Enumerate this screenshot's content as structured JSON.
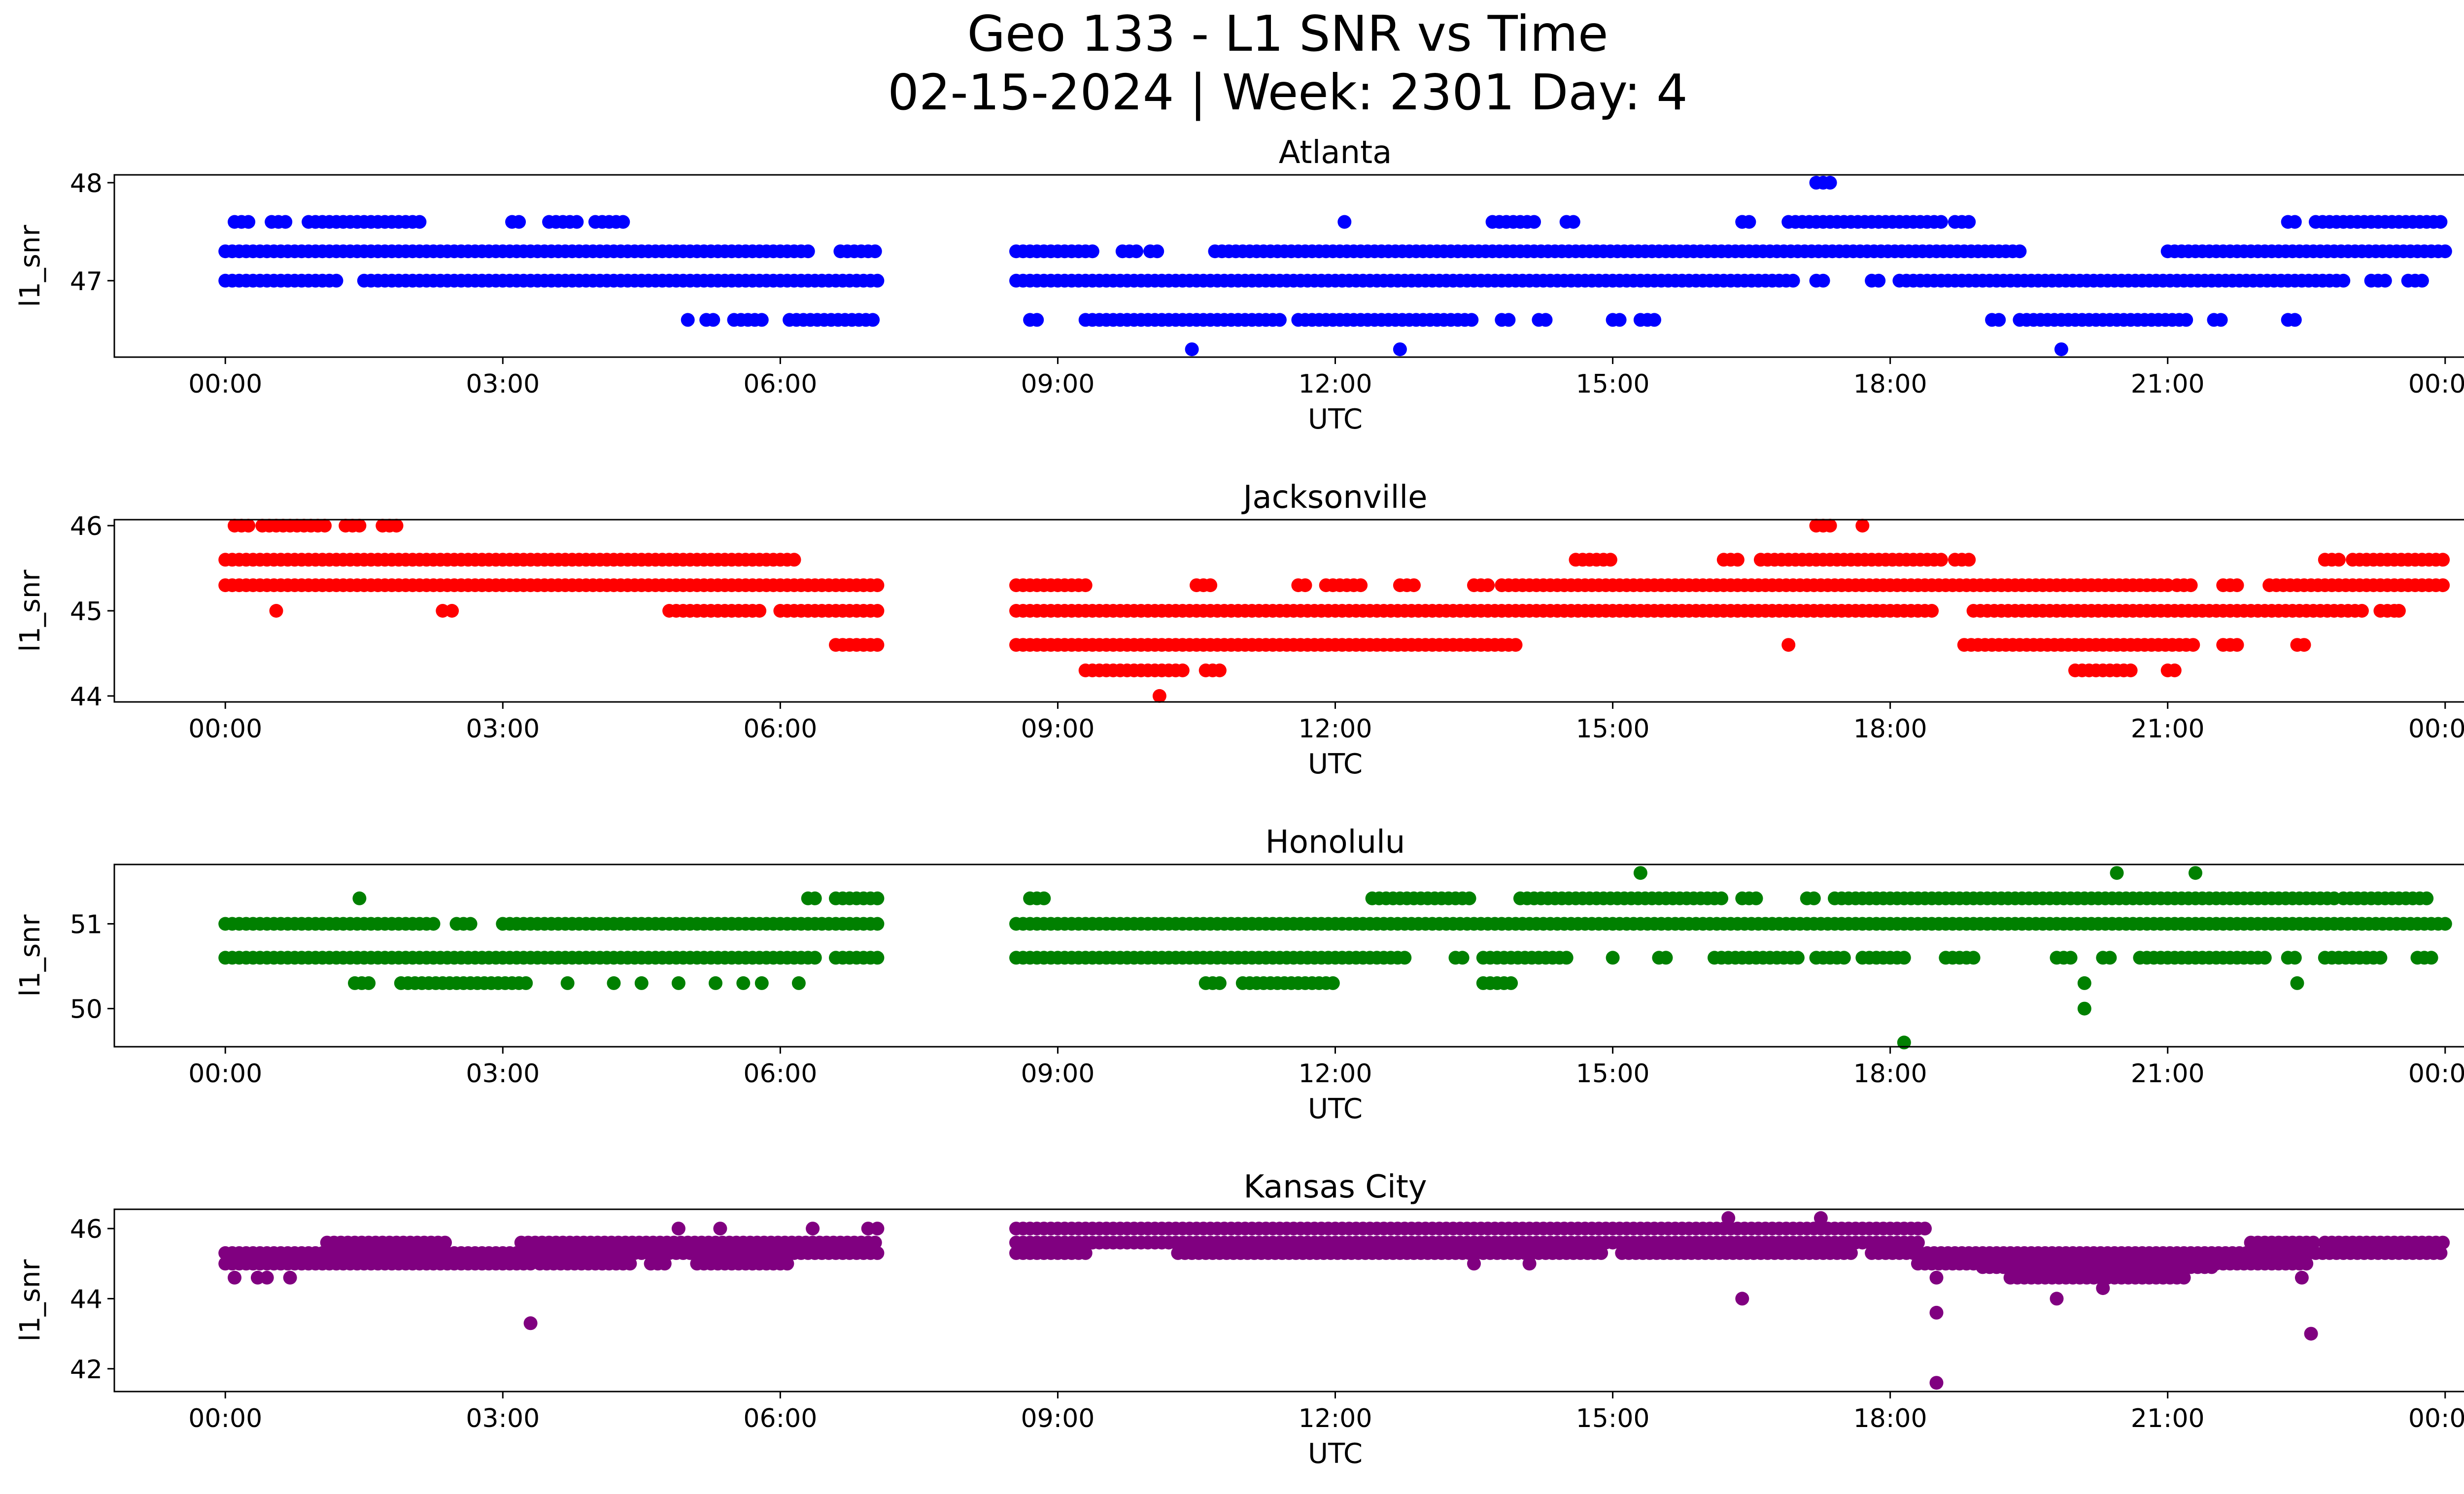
{
  "figure": {
    "title_line1": "Geo 133 - L1 SNR vs Time",
    "title_line2": "02-15-2024 | Week: 2301 Day: 4"
  },
  "chart_data": [
    {
      "type": "scatter",
      "title": "Atlanta",
      "xlabel": "UTC",
      "ylabel": "l1_snr",
      "color": "#0000ff",
      "xlim_hours": [
        -1.2,
        25.2
      ],
      "ylim": [
        46.22,
        48.08
      ],
      "yticks": [
        47,
        48
      ],
      "xtick_labels": [
        "00:00",
        "03:00",
        "06:00",
        "09:00",
        "12:00",
        "15:00",
        "18:00",
        "21:00",
        "00:00"
      ],
      "gap_hours": [
        7.1,
        8.55
      ],
      "bands": [
        {
          "y": 47.3,
          "segments": [
            [
              0,
              6.3
            ],
            [
              6.65,
              7.05
            ],
            [
              8.55,
              9.4
            ],
            [
              9.7,
              9.85
            ],
            [
              10.0,
              10.1
            ],
            [
              10.7,
              19.4
            ],
            [
              21.0,
              24.0
            ]
          ]
        },
        {
          "y": 47.0,
          "segments": [
            [
              0,
              1.2
            ],
            [
              1.5,
              7.05
            ],
            [
              8.55,
              17.0
            ],
            [
              17.2,
              17.3
            ],
            [
              17.8,
              17.9
            ],
            [
              18.1,
              22.9
            ],
            [
              23.2,
              23.4
            ],
            [
              23.6,
              23.8
            ]
          ]
        },
        {
          "y": 47.6,
          "segments": [
            [
              0.1,
              0.3
            ],
            [
              0.5,
              0.7
            ],
            [
              0.9,
              2.1
            ],
            [
              3.1,
              3.2
            ],
            [
              3.5,
              3.8
            ],
            [
              4.0,
              4.3
            ],
            [
              13.7,
              14.2
            ],
            [
              14.5,
              14.6
            ],
            [
              16.4,
              16.5
            ],
            [
              16.9,
              18.6
            ],
            [
              18.7,
              18.9
            ],
            [
              22.3,
              22.4
            ],
            [
              22.6,
              24.0
            ]
          ]
        },
        {
          "y": 46.6,
          "segments": [
            [
              5.0,
              5.05
            ],
            [
              5.2,
              5.3
            ],
            [
              5.5,
              5.8
            ],
            [
              6.1,
              7.0
            ],
            [
              8.7,
              8.8
            ],
            [
              9.3,
              11.4
            ],
            [
              11.6,
              13.5
            ],
            [
              13.8,
              13.9
            ],
            [
              14.2,
              14.3
            ],
            [
              15.0,
              15.1
            ],
            [
              15.3,
              15.5
            ],
            [
              19.1,
              19.2
            ],
            [
              19.4,
              21.2
            ],
            [
              21.5,
              21.6
            ],
            [
              22.3,
              22.4
            ]
          ]
        },
        {
          "y": 48.0,
          "segments": [
            [
              17.2,
              17.35
            ]
          ]
        }
      ],
      "points": [
        [
          10.45,
          46.3
        ],
        [
          12.7,
          46.3
        ],
        [
          19.85,
          46.3
        ],
        [
          12.1,
          47.6
        ],
        [
          16.4,
          47.6
        ]
      ]
    },
    {
      "type": "scatter",
      "title": "Jacksonville",
      "xlabel": "UTC",
      "ylabel": "l1_snr",
      "color": "#ff0000",
      "xlim_hours": [
        -1.2,
        25.2
      ],
      "ylim": [
        43.93,
        46.07
      ],
      "yticks": [
        44,
        45,
        46
      ],
      "xtick_labels": [
        "00:00",
        "03:00",
        "06:00",
        "09:00",
        "12:00",
        "15:00",
        "18:00",
        "21:00",
        "00:00"
      ],
      "gap_hours": [
        7.1,
        8.55
      ],
      "bands": [
        {
          "y": 45.6,
          "segments": [
            [
              0,
              6.2
            ],
            [
              14.6,
              15.0
            ],
            [
              16.2,
              16.4
            ],
            [
              16.6,
              18.6
            ],
            [
              18.7,
              18.9
            ],
            [
              22.7,
              22.9
            ],
            [
              23.0,
              24.0
            ]
          ]
        },
        {
          "y": 45.3,
          "segments": [
            [
              0,
              7.05
            ],
            [
              8.55,
              9.3
            ],
            [
              10.5,
              10.7
            ],
            [
              11.6,
              11.7
            ],
            [
              11.9,
              12.3
            ],
            [
              12.7,
              12.9
            ],
            [
              13.5,
              13.7
            ],
            [
              13.8,
              21.0
            ],
            [
              21.1,
              21.3
            ],
            [
              21.6,
              21.8
            ],
            [
              22.1,
              24.0
            ]
          ]
        },
        {
          "y": 45.0,
          "segments": [
            [
              4.8,
              5.8
            ],
            [
              6.0,
              7.05
            ],
            [
              8.55,
              18.5
            ],
            [
              18.9,
              23.1
            ],
            [
              23.3,
              23.5
            ]
          ]
        },
        {
          "y": 44.6,
          "segments": [
            [
              8.55,
              14.0
            ],
            [
              18.8,
              21.3
            ],
            [
              21.6,
              21.8
            ],
            [
              22.4,
              22.5
            ]
          ]
        },
        {
          "y": 44.6,
          "segments": [
            [
              6.6,
              7.05
            ]
          ]
        },
        {
          "y": 44.3,
          "segments": [
            [
              9.3,
              10.4
            ],
            [
              10.6,
              10.8
            ],
            [
              20.0,
              20.6
            ],
            [
              21.0,
              21.1
            ]
          ]
        },
        {
          "y": 46.0,
          "segments": [
            [
              0.1,
              0.3
            ],
            [
              0.4,
              1.1
            ],
            [
              1.3,
              1.5
            ],
            [
              1.7,
              1.9
            ],
            [
              17.2,
              17.35
            ],
            [
              17.7,
              17.75
            ]
          ]
        }
      ],
      "points": [
        [
          0.55,
          45.0
        ],
        [
          2.35,
          45.0
        ],
        [
          2.45,
          45.0
        ],
        [
          10.1,
          44.0
        ],
        [
          16.9,
          44.6
        ],
        [
          23.5,
          45.0
        ]
      ]
    },
    {
      "type": "scatter",
      "title": "Honolulu",
      "xlabel": "UTC",
      "ylabel": "l1_snr",
      "color": "#008000",
      "xlim_hours": [
        -1.2,
        25.2
      ],
      "ylim": [
        49.55,
        51.7
      ],
      "yticks": [
        50,
        51
      ],
      "xtick_labels": [
        "00:00",
        "03:00",
        "06:00",
        "09:00",
        "12:00",
        "15:00",
        "18:00",
        "21:00",
        "00:00"
      ],
      "gap_hours": [
        7.1,
        8.55
      ],
      "bands": [
        {
          "y": 51.0,
          "segments": [
            [
              0,
              2.3
            ],
            [
              2.5,
              2.7
            ],
            [
              3.0,
              7.05
            ],
            [
              8.55,
              24.0
            ]
          ]
        },
        {
          "y": 50.6,
          "segments": [
            [
              0,
              6.4
            ],
            [
              6.6,
              7.05
            ],
            [
              8.55,
              12.8
            ],
            [
              13.3,
              13.4
            ],
            [
              13.6,
              14.5
            ],
            [
              15.5,
              15.6
            ],
            [
              16.1,
              17.0
            ],
            [
              17.2,
              17.5
            ],
            [
              17.7,
              18.2
            ],
            [
              18.6,
              18.9
            ],
            [
              19.8,
              20.0
            ],
            [
              20.3,
              20.4
            ],
            [
              20.7,
              22.1
            ],
            [
              22.3,
              22.4
            ],
            [
              22.7,
              23.3
            ],
            [
              23.7,
              23.9
            ]
          ]
        },
        {
          "y": 51.3,
          "segments": [
            [
              12.4,
              13.5
            ],
            [
              14.0,
              16.2
            ],
            [
              16.4,
              16.6
            ],
            [
              17.1,
              17.2
            ],
            [
              17.4,
              22.8
            ],
            [
              22.9,
              23.8
            ]
          ]
        },
        {
          "y": 51.3,
          "segments": [
            [
              6.3,
              6.4
            ],
            [
              6.6,
              7.05
            ],
            [
              8.7,
              8.9
            ]
          ]
        },
        {
          "y": 50.3,
          "segments": [
            [
              1.4,
              1.6
            ],
            [
              1.9,
              3.3
            ],
            [
              10.6,
              10.8
            ],
            [
              11.0,
              12.0
            ],
            [
              13.6,
              13.9
            ]
          ]
        }
      ],
      "points": [
        [
          1.45,
          51.3
        ],
        [
          3.7,
          50.3
        ],
        [
          4.2,
          50.3
        ],
        [
          4.5,
          50.3
        ],
        [
          4.9,
          50.3
        ],
        [
          5.3,
          50.3
        ],
        [
          5.6,
          50.3
        ],
        [
          5.8,
          50.3
        ],
        [
          6.2,
          50.3
        ],
        [
          15.3,
          51.6
        ],
        [
          20.45,
          51.6
        ],
        [
          21.3,
          51.6
        ],
        [
          20.1,
          50.3
        ],
        [
          20.1,
          50.0
        ],
        [
          22.4,
          50.3
        ],
        [
          18.15,
          49.6
        ],
        [
          15.0,
          50.6
        ]
      ]
    },
    {
      "type": "scatter",
      "title": "Kansas City",
      "xlabel": "UTC",
      "ylabel": "l1_snr",
      "color": "#800080",
      "xlim_hours": [
        -1.2,
        25.2
      ],
      "ylim": [
        41.35,
        46.55
      ],
      "yticks": [
        42,
        44,
        46
      ],
      "xtick_labels": [
        "00:00",
        "03:00",
        "06:00",
        "09:00",
        "12:00",
        "15:00",
        "18:00",
        "21:00",
        "00:00"
      ],
      "gap_hours": [
        7.1,
        8.55
      ],
      "bands": [
        {
          "y": 45.0,
          "segments": [
            [
              0,
              3.3
            ],
            [
              3.4,
              4.4
            ],
            [
              4.6,
              4.8
            ],
            [
              5.1,
              6.1
            ],
            [
              18.3,
              22.5
            ]
          ]
        },
        {
          "y": 45.3,
          "segments": [
            [
              0,
              7.05
            ],
            [
              8.55,
              9.3
            ],
            [
              10.3,
              14.9
            ],
            [
              15.1,
              17.6
            ],
            [
              17.8,
              24.0
            ]
          ]
        },
        {
          "y": 45.6,
          "segments": [
            [
              1.1,
              2.4
            ],
            [
              3.2,
              7.05
            ],
            [
              8.55,
              18.3
            ],
            [
              21.9,
              22.6
            ],
            [
              22.7,
              24.0
            ]
          ]
        },
        {
          "y": 46.0,
          "segments": [
            [
              8.55,
              18.4
            ]
          ]
        },
        {
          "y": 44.6,
          "segments": [
            [
              19.3,
              21.2
            ]
          ]
        },
        {
          "y": 44.9,
          "segments": [
            [
              19.0,
              21.5
            ]
          ]
        }
      ],
      "points": [
        [
          0.1,
          44.6
        ],
        [
          0.35,
          44.6
        ],
        [
          0.45,
          44.6
        ],
        [
          0.7,
          44.6
        ],
        [
          3.3,
          43.3
        ],
        [
          4.9,
          46.0
        ],
        [
          5.35,
          46.0
        ],
        [
          6.35,
          46.0
        ],
        [
          6.95,
          46.0
        ],
        [
          7.05,
          46.0
        ],
        [
          16.25,
          46.3
        ],
        [
          16.4,
          44.0
        ],
        [
          17.25,
          46.3
        ],
        [
          18.5,
          44.6
        ],
        [
          18.5,
          43.6
        ],
        [
          18.5,
          41.6
        ],
        [
          19.8,
          44.0
        ],
        [
          20.3,
          44.3
        ],
        [
          22.45,
          44.6
        ],
        [
          22.55,
          43.0
        ],
        [
          13.5,
          45.0
        ],
        [
          14.1,
          45.0
        ]
      ]
    }
  ]
}
